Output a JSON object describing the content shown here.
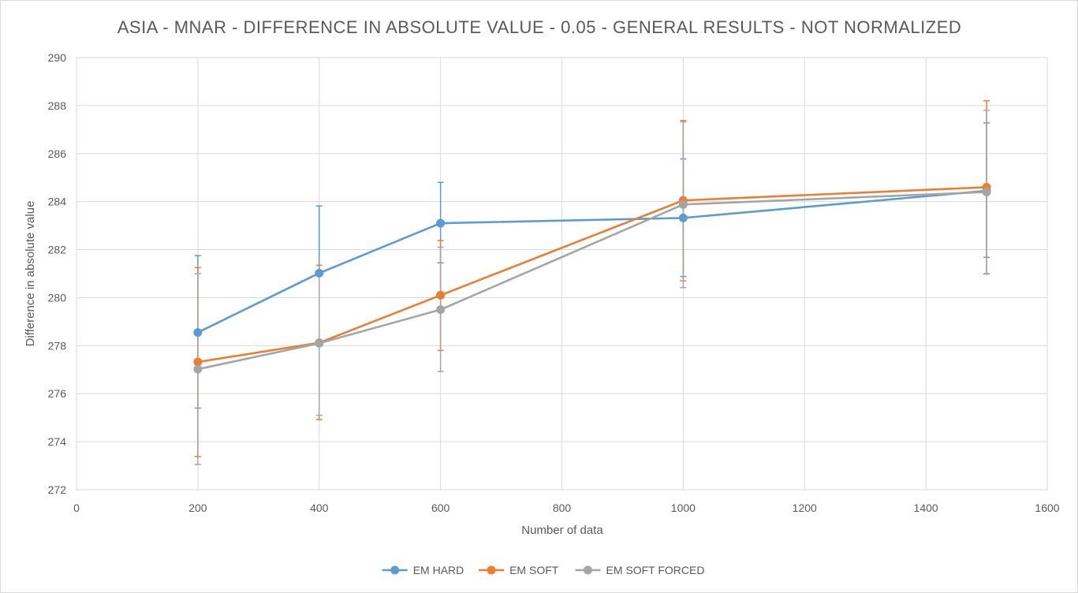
{
  "chart_data": {
    "type": "scatter",
    "title": "ASIA - MNAR - DIFFERENCE IN ABSOLUTE VALUE  - 0.05 - GENERAL RESULTS - NOT NORMALIZED",
    "xlabel": "Number of data",
    "ylabel": "Difference in absolute value",
    "xlim": [
      0,
      1600
    ],
    "ylim": [
      272,
      290
    ],
    "x_ticks": [
      0,
      200,
      400,
      600,
      800,
      1000,
      1200,
      1400,
      1600
    ],
    "y_ticks": [
      272,
      274,
      276,
      278,
      280,
      282,
      284,
      286,
      288,
      290
    ],
    "grid": true,
    "legend_position": "bottom",
    "x": [
      200,
      400,
      600,
      1000,
      1500
    ],
    "series": [
      {
        "name": "EM HARD",
        "color": "#5b9bd5",
        "values": [
          278.55,
          281.02,
          283.1,
          283.32,
          284.45
        ],
        "err_lower": [
          275.4,
          278.1,
          281.45,
          280.88,
          281.68
        ],
        "err_upper": [
          281.75,
          283.82,
          284.8,
          285.78,
          287.28
        ]
      },
      {
        "name": "EM SOFT",
        "color": "#ed7d31",
        "values": [
          277.32,
          278.12,
          280.1,
          284.05,
          284.6
        ],
        "err_lower": [
          273.38,
          274.92,
          277.8,
          280.7,
          281.0
        ],
        "err_upper": [
          281.25,
          281.35,
          282.38,
          287.38,
          288.2
        ]
      },
      {
        "name": "EM SOFT FORCED",
        "color": "#a5a5a5",
        "values": [
          277.02,
          278.1,
          279.5,
          283.88,
          284.4
        ],
        "err_lower": [
          273.05,
          275.1,
          276.92,
          280.42,
          280.98
        ],
        "err_upper": [
          281.0,
          281.1,
          282.1,
          287.32,
          287.8
        ]
      }
    ]
  }
}
